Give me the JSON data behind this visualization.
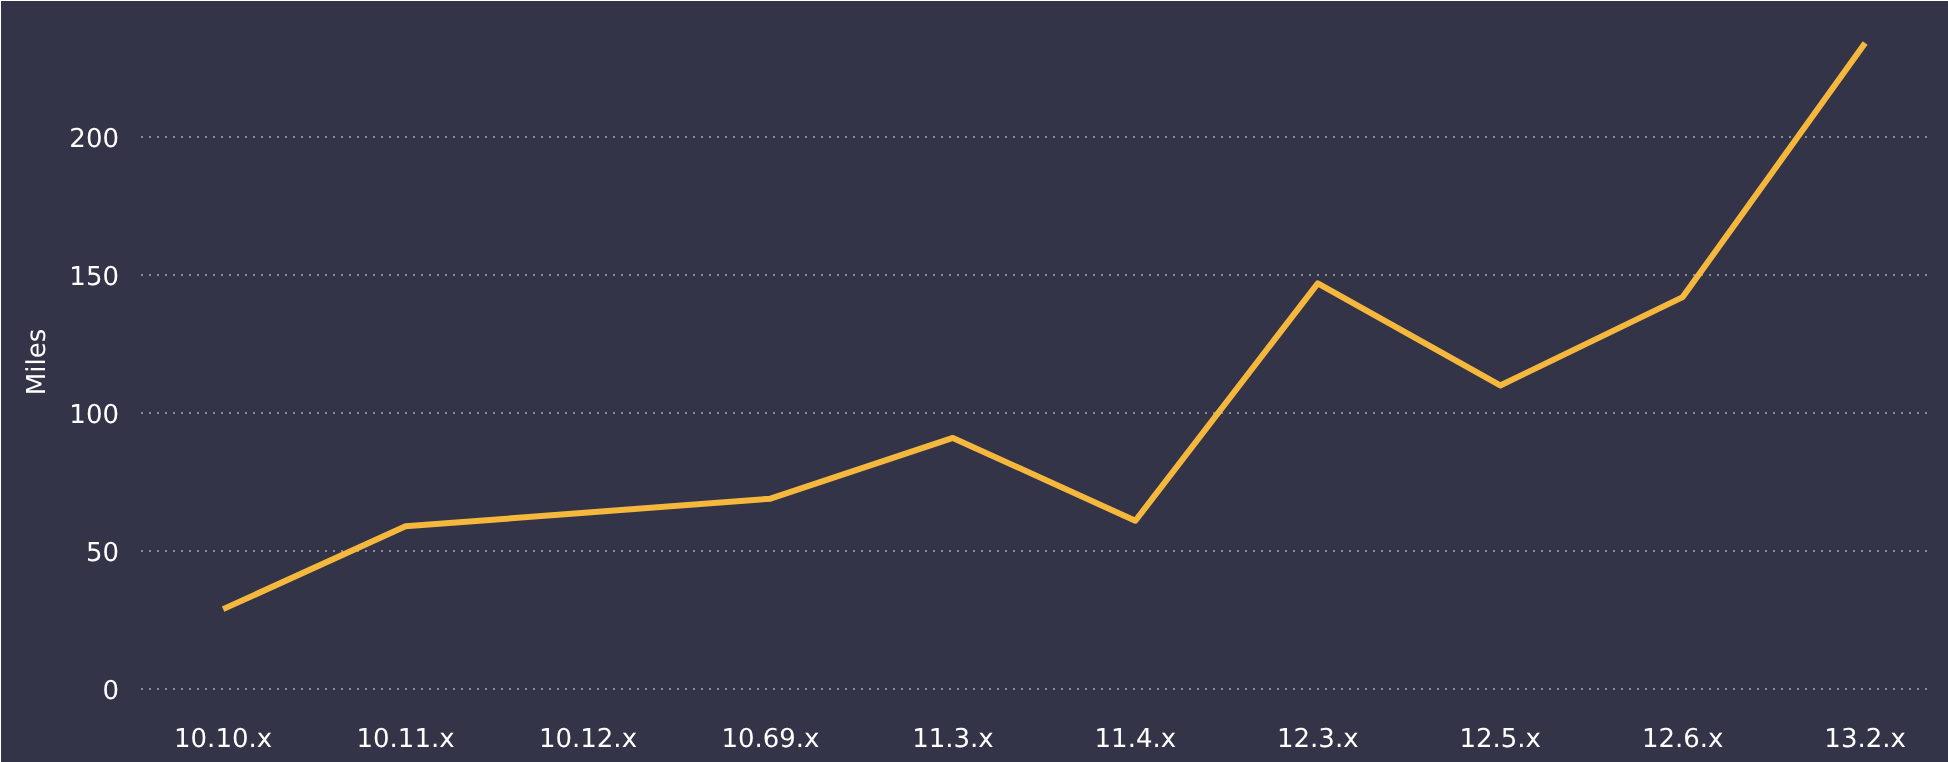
{
  "chart_data": {
    "type": "line",
    "ylabel": "Miles",
    "categories": [
      "10.10.x",
      "10.11.x",
      "10.12.x",
      "10.69.x",
      "11.3.x",
      "11.4.x",
      "12.3.x",
      "12.5.x",
      "12.6.x",
      "13.2.x"
    ],
    "series": [
      {
        "color": "#f5b83d",
        "values": [
          29,
          59,
          64,
          69,
          91,
          61,
          147,
          110,
          142,
          234
        ]
      }
    ],
    "ylim": [
      -5,
      242
    ],
    "yticks": [
      0,
      50,
      100,
      150,
      200
    ],
    "grid": "y",
    "marker": "none",
    "line_style": "solid"
  }
}
